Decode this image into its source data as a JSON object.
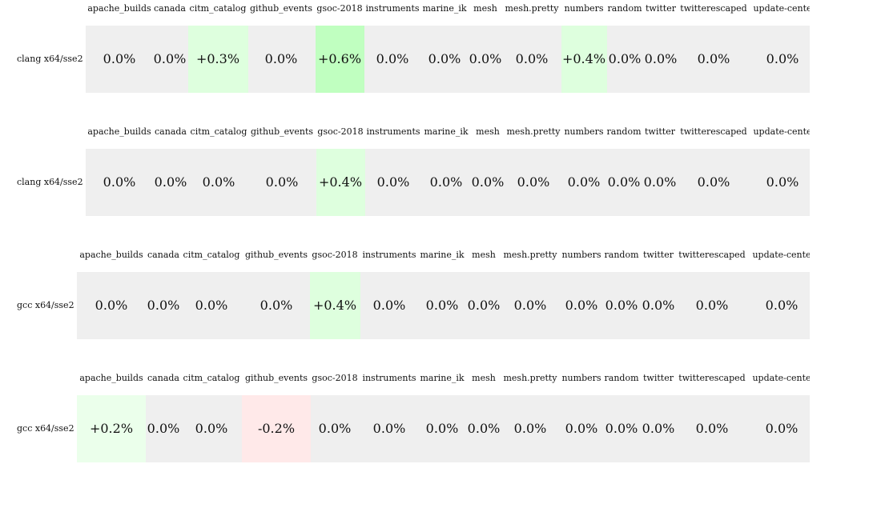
{
  "blocks": [
    {
      "label": "clang x64/sse2",
      "headers": [
        "apache_builds",
        "canada",
        "citm_catalog",
        "github_events",
        "gsoc-2018",
        "instruments",
        "marine_ik",
        "mesh",
        "mesh.pretty",
        "numbers",
        "random",
        "twitter",
        "twitterescaped",
        "update-cente"
      ],
      "values": [
        "0.0%",
        "0.0%",
        "+0.3%",
        "0.0%",
        "+0.6%",
        "0.0%",
        "0.0%",
        "0.0%",
        "0.0%",
        "+0.4%",
        "0.0%",
        "0.0%",
        "0.0%",
        "0.0%"
      ],
      "changes": [
        0,
        0,
        0.3,
        0,
        0.6,
        0,
        0,
        0,
        0,
        0.4,
        0,
        0,
        0,
        0
      ]
    },
    {
      "label": "clang x64/sse2",
      "headers": [
        "apache_builds",
        "canada",
        "citm_catalog",
        "github_events",
        "gsoc-2018",
        "instruments",
        "marine_ik",
        "mesh",
        "mesh.pretty",
        "numbers",
        "random",
        "twitter",
        "twitterescaped",
        "update-cente"
      ],
      "values": [
        "0.0%",
        "0.0%",
        "0.0%",
        "0.0%",
        "+0.4%",
        "0.0%",
        "0.0%",
        "0.0%",
        "0.0%",
        "0.0%",
        "0.0%",
        "0.0%",
        "0.0%",
        "0.0%"
      ],
      "changes": [
        0,
        0,
        0,
        0,
        0.4,
        0,
        0,
        0,
        0,
        0,
        0,
        0,
        0,
        0
      ]
    },
    {
      "label": "gcc x64/sse2",
      "headers": [
        "apache_builds",
        "canada",
        "citm_catalog",
        "github_events",
        "gsoc-2018",
        "instruments",
        "marine_ik",
        "mesh",
        "mesh.pretty",
        "numbers",
        "random",
        "twitter",
        "twitterescaped",
        "update-cente"
      ],
      "values": [
        "0.0%",
        "0.0%",
        "0.0%",
        "0.0%",
        "+0.4%",
        "0.0%",
        "0.0%",
        "0.0%",
        "0.0%",
        "0.0%",
        "0.0%",
        "0.0%",
        "0.0%",
        "0.0%"
      ],
      "changes": [
        0,
        0,
        0,
        0,
        0.4,
        0,
        0,
        0,
        0,
        0,
        0,
        0,
        0,
        0
      ]
    },
    {
      "label": "gcc x64/sse2",
      "headers": [
        "apache_builds",
        "canada",
        "citm_catalog",
        "github_events",
        "gsoc-2018",
        "instruments",
        "marine_ik",
        "mesh",
        "mesh.pretty",
        "numbers",
        "random",
        "twitter",
        "twitterescaped",
        "update-cente"
      ],
      "values": [
        "+0.2%",
        "0.0%",
        "0.0%",
        "-0.2%",
        "0.0%",
        "0.0%",
        "0.0%",
        "0.0%",
        "0.0%",
        "0.0%",
        "0.0%",
        "0.0%",
        "0.0%",
        "0.0%"
      ],
      "changes": [
        0.2,
        0,
        0,
        -0.2,
        0,
        0,
        0,
        0,
        0,
        0,
        0,
        0,
        0,
        0
      ]
    }
  ],
  "colors": {
    "neutral": "#efefef",
    "positive_small": "#ebffeb",
    "positive_mid": "#deffde",
    "positive_strong": "#c0ffc0",
    "negative_small": "#ffe9e9"
  },
  "chart_data": {
    "type": "table",
    "columns": [
      "apache_builds",
      "canada",
      "citm_catalog",
      "github_events",
      "gsoc-2018",
      "instruments",
      "marine_ik",
      "mesh",
      "mesh.pretty",
      "numbers",
      "random",
      "twitter",
      "twitterescaped",
      "update-cente"
    ],
    "rows": [
      {
        "name": "clang x64/sse2",
        "values": [
          0.0,
          0.0,
          0.3,
          0.0,
          0.6,
          0.0,
          0.0,
          0.0,
          0.0,
          0.4,
          0.0,
          0.0,
          0.0,
          0.0
        ]
      },
      {
        "name": "clang x64/sse2",
        "values": [
          0.0,
          0.0,
          0.0,
          0.0,
          0.4,
          0.0,
          0.0,
          0.0,
          0.0,
          0.0,
          0.0,
          0.0,
          0.0,
          0.0
        ]
      },
      {
        "name": "gcc x64/sse2",
        "values": [
          0.0,
          0.0,
          0.0,
          0.0,
          0.4,
          0.0,
          0.0,
          0.0,
          0.0,
          0.0,
          0.0,
          0.0,
          0.0,
          0.0
        ]
      },
      {
        "name": "gcc x64/sse2",
        "values": [
          0.2,
          0.0,
          0.0,
          -0.2,
          0.0,
          0.0,
          0.0,
          0.0,
          0.0,
          0.0,
          0.0,
          0.0,
          0.0,
          0.0
        ]
      }
    ],
    "unit": "%"
  }
}
